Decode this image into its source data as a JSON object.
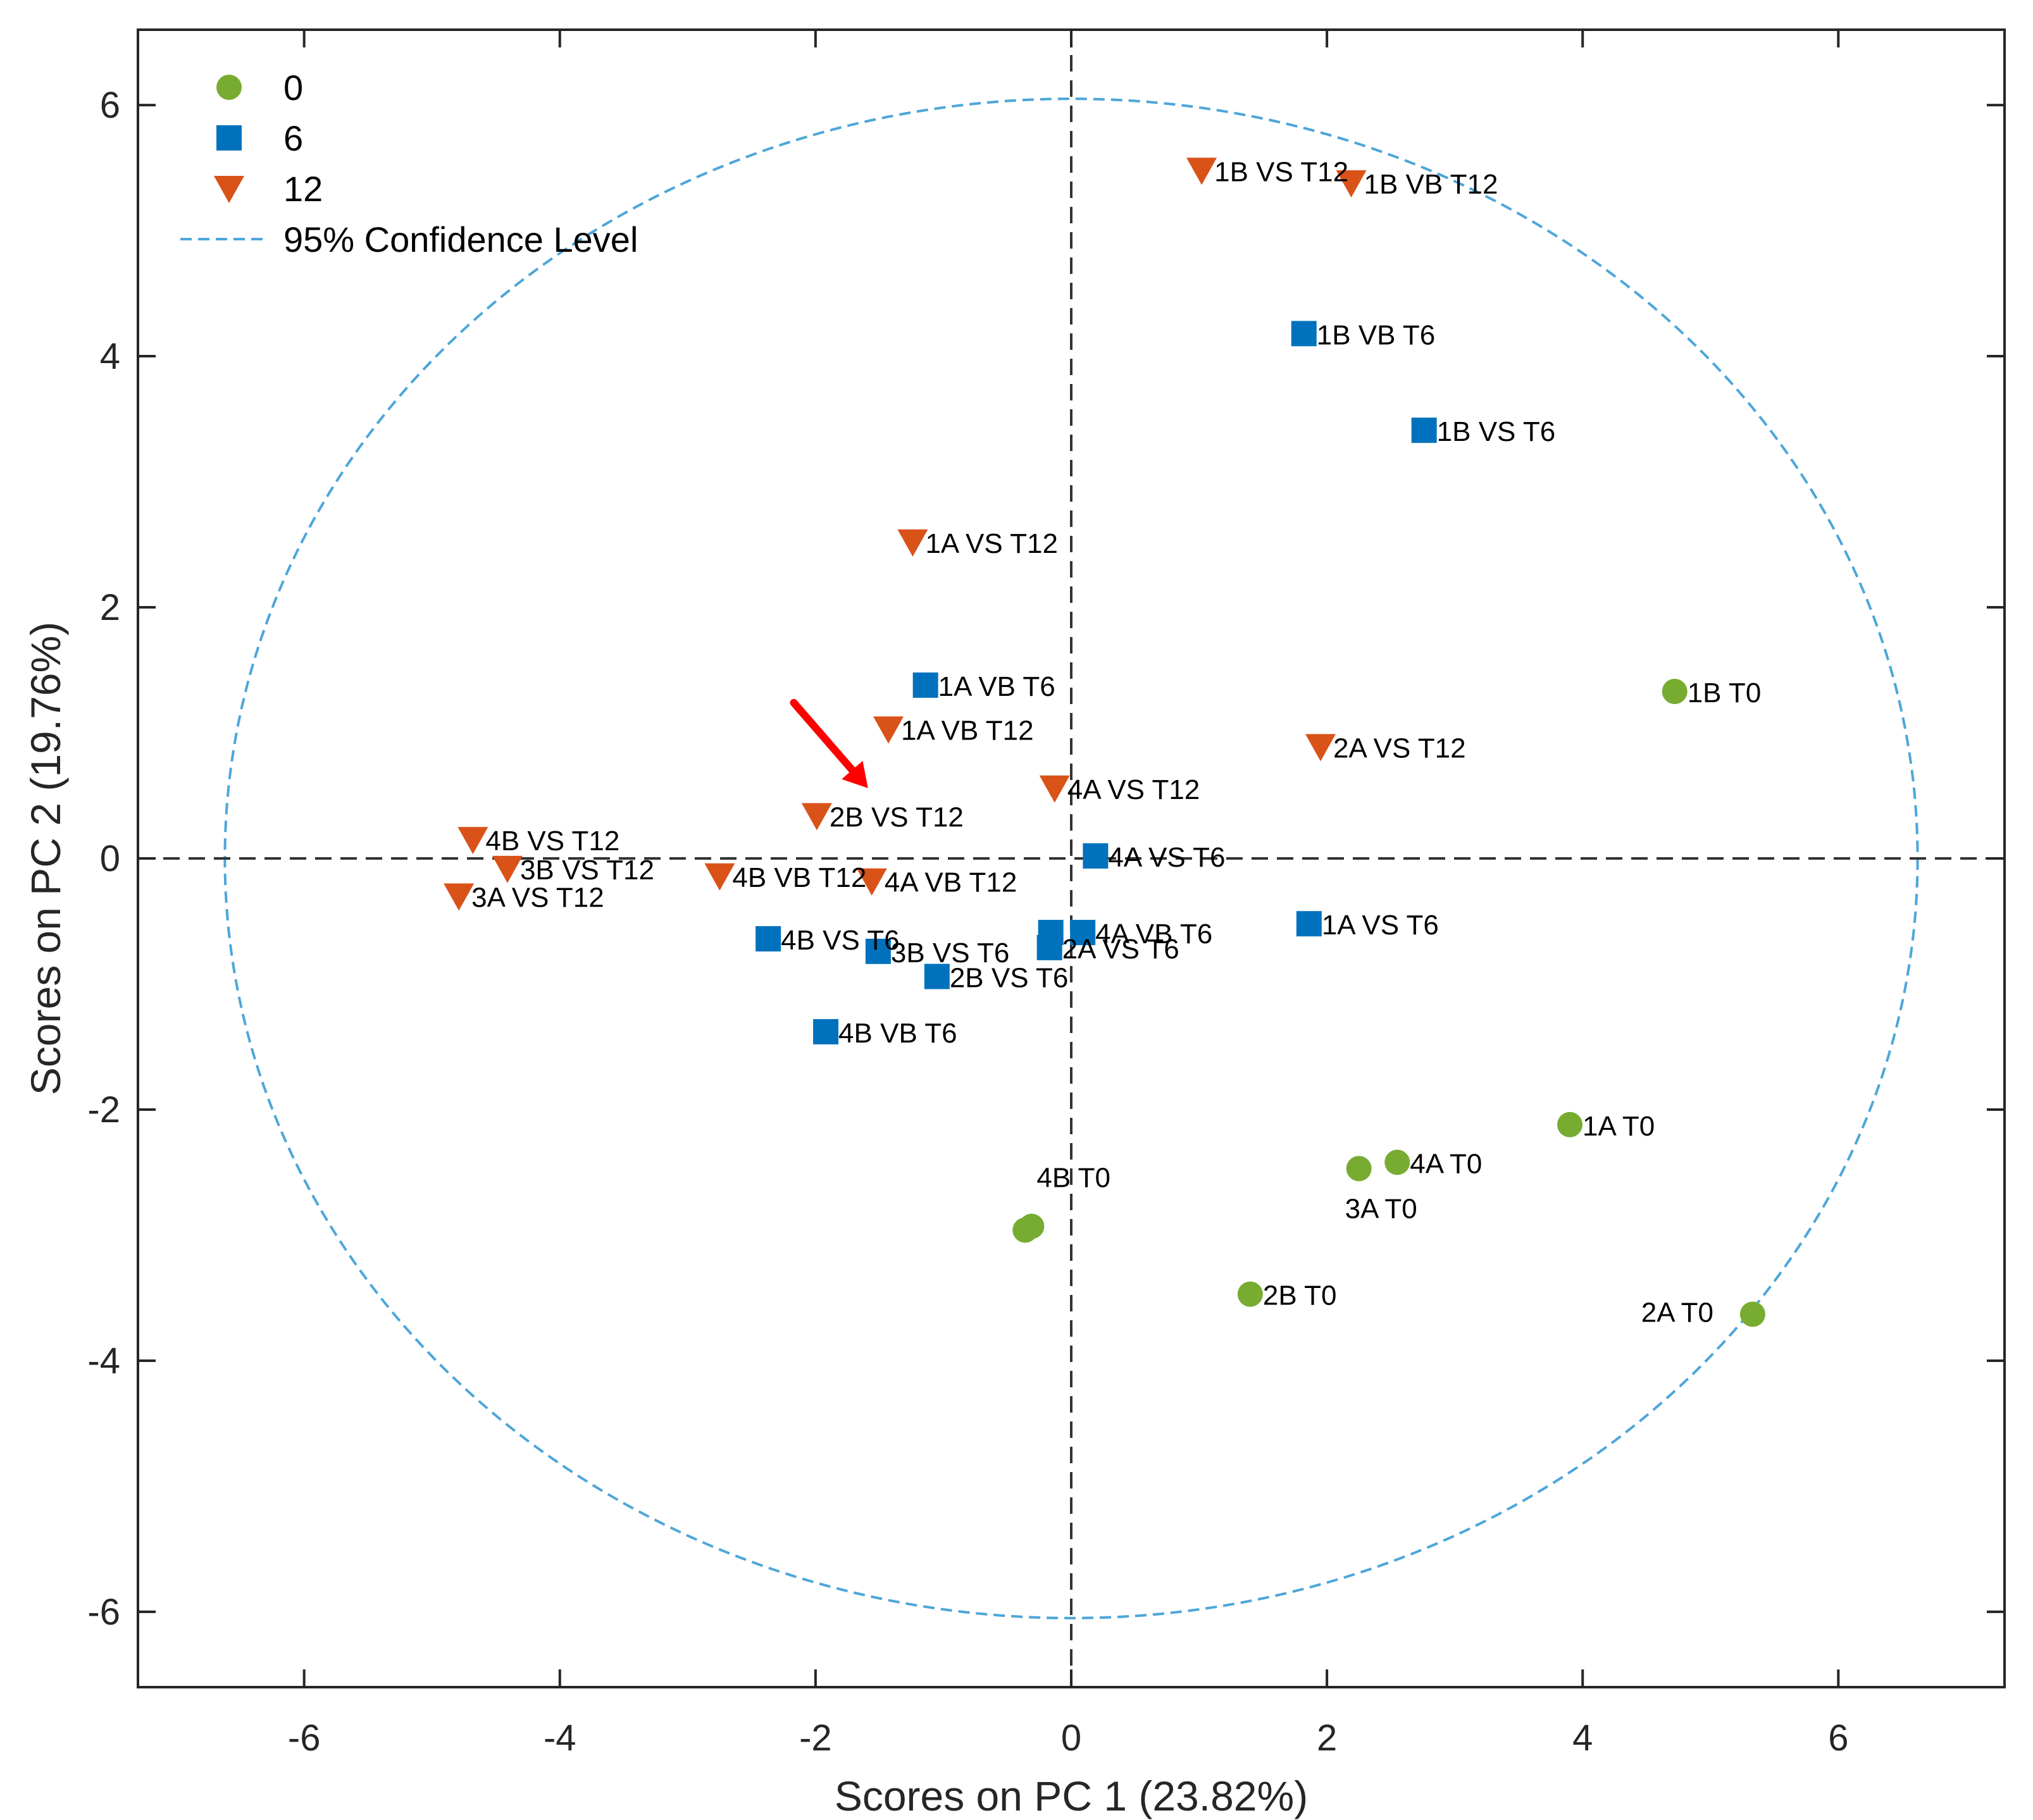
{
  "chart_data": {
    "type": "scatter",
    "xlabel": "Scores on PC 1 (23.82%)",
    "ylabel": "Scores on PC 2 (19.76%)",
    "xlim": [
      -7.3,
      7.3
    ],
    "ylim": [
      -6.6,
      6.6
    ],
    "xticks": [
      -6,
      -4,
      -2,
      0,
      2,
      4,
      6
    ],
    "yticks": [
      -6,
      -4,
      -2,
      0,
      2,
      4,
      6
    ],
    "legend_position": "top-left",
    "legend": [
      {
        "label": "0",
        "marker": "circle",
        "color": "#77AC30"
      },
      {
        "label": "6",
        "marker": "square",
        "color": "#0072BD"
      },
      {
        "label": "12",
        "marker": "triangle-down",
        "color": "#D95319"
      },
      {
        "label": "95% Confidence Level",
        "marker": "dashed-line",
        "color": "#4DA6D9"
      }
    ],
    "confidence_ellipse": {
      "rx": 6.62,
      "ry": 6.05,
      "center": [
        0,
        0
      ]
    },
    "reference_lines": {
      "x": 0,
      "y": 0,
      "style": "dashed"
    },
    "series": [
      {
        "name": "0",
        "marker": "circle",
        "color": "#77AC30",
        "points": [
          {
            "x": 4.72,
            "y": 1.33,
            "label": "1B T0"
          },
          {
            "x": 3.9,
            "y": -2.12,
            "label": "1A T0"
          },
          {
            "x": 2.55,
            "y": -2.42,
            "label": "4A T0"
          },
          {
            "x": 2.25,
            "y": -2.47,
            "label": "3A T0"
          },
          {
            "x": -0.31,
            "y": -2.93,
            "label": "4B T0"
          },
          {
            "x": -0.36,
            "y": -2.96,
            "label": ""
          },
          {
            "x": 1.4,
            "y": -3.47,
            "label": "2B T0"
          },
          {
            "x": 5.33,
            "y": -3.63,
            "label": "2A T0"
          }
        ]
      },
      {
        "name": "6",
        "marker": "square",
        "color": "#0072BD",
        "points": [
          {
            "x": 1.82,
            "y": 4.18,
            "label": "1B VB T6"
          },
          {
            "x": 2.76,
            "y": 3.41,
            "label": "1B VS T6"
          },
          {
            "x": -1.14,
            "y": 1.38,
            "label": "1A VB T6"
          },
          {
            "x": 0.19,
            "y": 0.02,
            "label": "4A VS T6"
          },
          {
            "x": 1.86,
            "y": -0.52,
            "label": "1A VS T6"
          },
          {
            "x": 0.09,
            "y": -0.59,
            "label": "4A VB T6"
          },
          {
            "x": -0.16,
            "y": -0.59,
            "label": ""
          },
          {
            "x": -0.17,
            "y": -0.71,
            "label": "2A VS T6"
          },
          {
            "x": -2.37,
            "y": -0.64,
            "label": "4B VS T6"
          },
          {
            "x": -1.51,
            "y": -0.74,
            "label": "3B VS T6"
          },
          {
            "x": -1.05,
            "y": -0.94,
            "label": "2B VS T6"
          },
          {
            "x": -1.92,
            "y": -1.38,
            "label": "4B VB T6"
          }
        ]
      },
      {
        "name": "12",
        "marker": "triangle-down",
        "color": "#D95319",
        "points": [
          {
            "x": 1.02,
            "y": 5.48,
            "label": "1B VS T12"
          },
          {
            "x": 2.19,
            "y": 5.38,
            "label": "1B VB T12"
          },
          {
            "x": -1.24,
            "y": 2.52,
            "label": "1A VS T12"
          },
          {
            "x": -1.43,
            "y": 1.03,
            "label": "1A VB T12"
          },
          {
            "x": 1.95,
            "y": 0.89,
            "label": "2A VS T12"
          },
          {
            "x": -0.13,
            "y": 0.56,
            "label": "4A VS T12"
          },
          {
            "x": -1.99,
            "y": 0.34,
            "label": "2B VS T12"
          },
          {
            "x": -4.68,
            "y": 0.15,
            "label": "4B VS T12"
          },
          {
            "x": -4.41,
            "y": -0.08,
            "label": "3B VS T12"
          },
          {
            "x": -4.79,
            "y": -0.3,
            "label": "3A VS T12"
          },
          {
            "x": -2.75,
            "y": -0.14,
            "label": "4B VB T12"
          },
          {
            "x": -1.56,
            "y": -0.18,
            "label": "4A VB T12"
          }
        ]
      }
    ],
    "annotations": [
      {
        "type": "arrow",
        "color": "#FF0000",
        "from": [
          -2.17,
          1.24
        ],
        "to": [
          -1.59,
          0.56
        ]
      }
    ]
  }
}
